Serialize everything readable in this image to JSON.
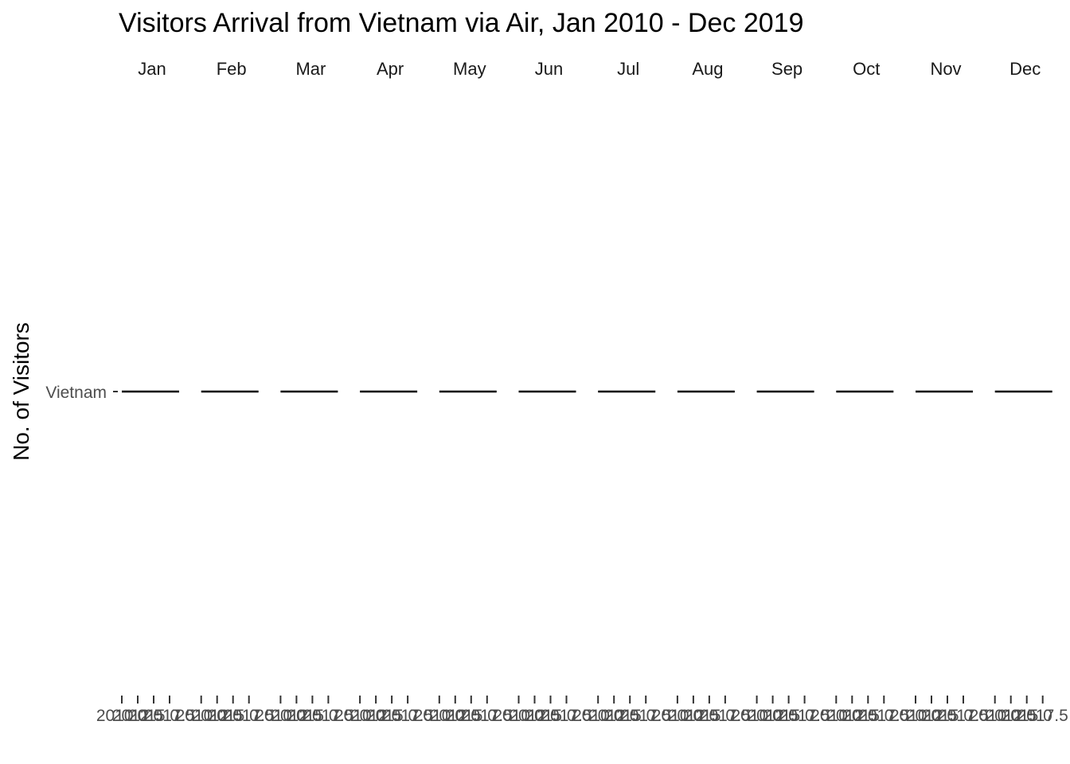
{
  "chart_data": {
    "type": "line",
    "title": "Visitors Arrival from Vietnam via Air, Jan 2010 - Dec 2019",
    "ylabel": "No. of Visitors",
    "xlabel": "",
    "facets": [
      "Jan",
      "Feb",
      "Mar",
      "Apr",
      "May",
      "Jun",
      "Jul",
      "Aug",
      "Sep",
      "Oct",
      "Nov",
      "Dec"
    ],
    "y_categories": [
      "Vietnam"
    ],
    "x_ticks": [
      "2010.0",
      "2012.5",
      "2015.0",
      "2017.5"
    ],
    "xlim": [
      2010,
      2019
    ],
    "series": [
      {
        "name": "Vietnam",
        "facet_values": {
          "Jan": [
            [
              "2010",
              "Vietnam"
            ],
            [
              "2019",
              "Vietnam"
            ]
          ],
          "Feb": [
            [
              "2010",
              "Vietnam"
            ],
            [
              "2019",
              "Vietnam"
            ]
          ],
          "Mar": [
            [
              "2010",
              "Vietnam"
            ],
            [
              "2019",
              "Vietnam"
            ]
          ],
          "Apr": [
            [
              "2010",
              "Vietnam"
            ],
            [
              "2019",
              "Vietnam"
            ]
          ],
          "May": [
            [
              "2010",
              "Vietnam"
            ],
            [
              "2019",
              "Vietnam"
            ]
          ],
          "Jun": [
            [
              "2010",
              "Vietnam"
            ],
            [
              "2019",
              "Vietnam"
            ]
          ],
          "Jul": [
            [
              "2010",
              "Vietnam"
            ],
            [
              "2019",
              "Vietnam"
            ]
          ],
          "Aug": [
            [
              "2010",
              "Vietnam"
            ],
            [
              "2019",
              "Vietnam"
            ]
          ],
          "Sep": [
            [
              "2010",
              "Vietnam"
            ],
            [
              "2019",
              "Vietnam"
            ]
          ],
          "Oct": [
            [
              "2010",
              "Vietnam"
            ],
            [
              "2019",
              "Vietnam"
            ]
          ],
          "Nov": [
            [
              "2010",
              "Vietnam"
            ],
            [
              "2019",
              "Vietnam"
            ]
          ],
          "Dec": [
            [
              "2010",
              "Vietnam"
            ],
            [
              "2019",
              "Vietnam"
            ]
          ]
        }
      }
    ],
    "line_color": "#000000",
    "grid": false,
    "legend": "none"
  }
}
